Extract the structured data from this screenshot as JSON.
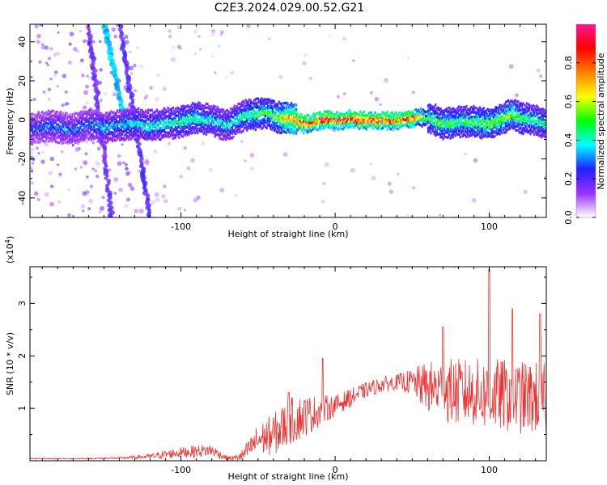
{
  "page": {
    "title": "C2E3.2024.029.00.52.G21"
  },
  "chart_data": [
    {
      "type": "heatmap",
      "title": "C2E3.2024.029.00.52.G21",
      "xlabel": "Height of straight line (km)",
      "ylabel": "Frequency (Hz)",
      "xlim": [
        -198,
        137
      ],
      "ylim": [
        -50,
        49
      ],
      "x_ticks": [
        -100,
        0,
        100
      ],
      "x_tick_labels": [
        "-100",
        "0",
        "100"
      ],
      "y_ticks": [
        -40,
        -20,
        0,
        20,
        40
      ],
      "y_tick_labels": [
        "-40",
        "-20",
        "0",
        "20",
        "40"
      ],
      "colorbar": {
        "label": "Normalized spectral amplitude",
        "range": [
          0,
          1
        ],
        "ticks": [
          0.0,
          0.2,
          0.4,
          0.6,
          0.8
        ],
        "tick_labels": [
          "0.0",
          "0.2",
          "0.4",
          "0.6",
          "0.8"
        ],
        "colors": [
          "#ffffff",
          "#9b30ff",
          "#2020ff",
          "#00ffff",
          "#00ff00",
          "#ffff00",
          "#ff8000",
          "#ff0000",
          "#ff1493"
        ]
      },
      "ridge": {
        "x": [
          -198,
          -185,
          -170,
          -160,
          -150,
          -140,
          -130,
          -120,
          -110,
          -100,
          -90,
          -80,
          -70,
          -60,
          -50,
          -45,
          -40,
          -35,
          -30,
          -25,
          -20,
          -15,
          -10,
          -5,
          0,
          5,
          10,
          20,
          30,
          40,
          50,
          55,
          60,
          65,
          70,
          80,
          90,
          100,
          110,
          115,
          120,
          130,
          137
        ],
        "freq": [
          -5,
          -3,
          -5,
          -2,
          -4,
          -3,
          -2,
          -3,
          -2,
          -1,
          1,
          0,
          -3,
          2,
          3,
          4,
          2,
          1,
          1,
          0,
          -2,
          -1,
          0,
          1,
          0,
          0,
          1,
          0,
          0,
          0,
          1,
          2,
          1,
          0,
          -2,
          -1,
          -1,
          -2,
          1,
          3,
          1,
          0,
          -2
        ],
        "amplitude": [
          0.25,
          0.3,
          0.3,
          0.3,
          0.35,
          0.35,
          0.4,
          0.4,
          0.4,
          0.45,
          0.45,
          0.4,
          0.4,
          0.45,
          0.5,
          0.5,
          0.55,
          0.6,
          0.75,
          0.8,
          0.85,
          0.85,
          0.9,
          0.9,
          0.85,
          0.9,
          0.9,
          0.85,
          0.85,
          0.85,
          0.9,
          0.6,
          0.5,
          0.5,
          0.5,
          0.5,
          0.5,
          0.55,
          0.55,
          0.55,
          0.5,
          0.45,
          0.45
        ]
      }
    },
    {
      "type": "line",
      "xlabel": "Height of straight line (km)",
      "ylabel": "SNR (10 * v/v)",
      "y_multiplier": "(x10",
      "y_multiplier_exponent": "4",
      "y_multiplier_close": ")",
      "xlim": [
        -198,
        137
      ],
      "ylim": [
        0,
        3.7
      ],
      "x_ticks": [
        -100,
        0,
        100
      ],
      "x_tick_labels": [
        "-100",
        "0",
        "100"
      ],
      "y_ticks": [
        1,
        2,
        3
      ],
      "y_tick_labels": [
        "1",
        "2",
        "3"
      ],
      "series": [
        {
          "color": "#ee3333",
          "x": [
            -198,
            -170,
            -140,
            -120,
            -110,
            -100,
            -90,
            -80,
            -75,
            -70,
            -65,
            -60,
            -55,
            -50,
            -45,
            -40,
            -35,
            -30,
            -25,
            -20,
            -15,
            -10,
            -5,
            0,
            10,
            20,
            30,
            40,
            50,
            60,
            70,
            80,
            90,
            100,
            110,
            120,
            130,
            137
          ],
          "y": [
            0.04,
            0.04,
            0.05,
            0.08,
            0.12,
            0.16,
            0.18,
            0.2,
            0.12,
            0.05,
            0.05,
            0.1,
            0.25,
            0.4,
            0.45,
            0.5,
            0.6,
            0.75,
            0.8,
            0.85,
            0.9,
            0.95,
            1.0,
            1.05,
            1.2,
            1.35,
            1.45,
            1.5,
            1.5,
            1.4,
            1.35,
            1.3,
            1.3,
            1.25,
            1.25,
            1.2,
            1.2,
            1.15
          ],
          "noise": [
            0.01,
            0.01,
            0.02,
            0.05,
            0.08,
            0.1,
            0.12,
            0.12,
            0.08,
            0.04,
            0.05,
            0.12,
            0.2,
            0.3,
            0.35,
            0.4,
            0.45,
            0.45,
            0.45,
            0.4,
            0.35,
            0.3,
            0.25,
            0.2,
            0.18,
            0.15,
            0.15,
            0.15,
            0.25,
            0.5,
            0.6,
            0.65,
            0.65,
            0.7,
            0.7,
            0.7,
            0.7,
            0.7
          ],
          "peaks": [
            {
              "x": -30,
              "y": 1.3
            },
            {
              "x": -8,
              "y": 1.95
            },
            {
              "x": 70,
              "y": 2.55
            },
            {
              "x": 100,
              "y": 3.65
            },
            {
              "x": 115,
              "y": 2.9
            },
            {
              "x": 133,
              "y": 2.8
            }
          ]
        }
      ]
    }
  ]
}
